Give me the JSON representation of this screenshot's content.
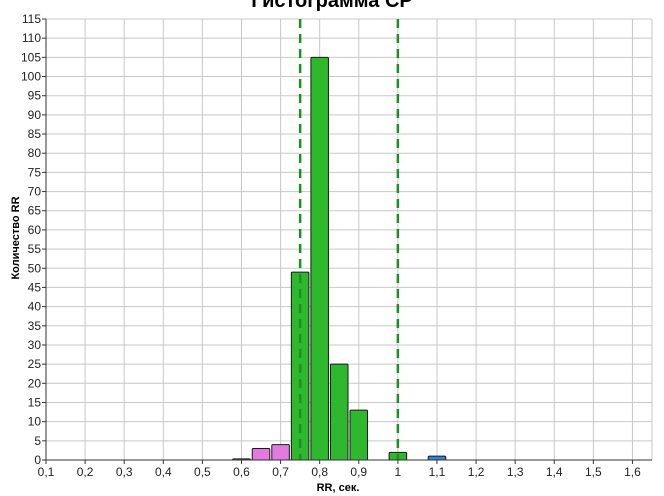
{
  "chart_data": {
    "type": "bar",
    "title": "Гистограмма СР",
    "xlabel": "RR, сек.",
    "ylabel": "Количество RR",
    "xlim": [
      0.1,
      1.65
    ],
    "ylim": [
      0,
      115
    ],
    "x_ticks": [
      "0,1",
      "0,2",
      "0,3",
      "0,4",
      "0,5",
      "0,6",
      "0,7",
      "0,8",
      "0,9",
      "1",
      "1,1",
      "1,2",
      "1,3",
      "1,4",
      "1,5",
      "1,6"
    ],
    "y_ticks": [
      "0",
      "5",
      "10",
      "15",
      "20",
      "25",
      "30",
      "35",
      "40",
      "45",
      "50",
      "55",
      "60",
      "65",
      "70",
      "75",
      "80",
      "85",
      "90",
      "95",
      "100",
      "105",
      "110",
      "115"
    ],
    "grid": true,
    "bin_width": 0.05,
    "bars": [
      {
        "x": 0.575,
        "value": 0.3,
        "color": "#e47ae0"
      },
      {
        "x": 0.625,
        "value": 3,
        "color": "#e47ae0"
      },
      {
        "x": 0.675,
        "value": 4,
        "color": "#e47ae0"
      },
      {
        "x": 0.725,
        "value": 49,
        "color": "#2eb82e"
      },
      {
        "x": 0.775,
        "value": 105,
        "color": "#2eb82e"
      },
      {
        "x": 0.825,
        "value": 25,
        "color": "#2eb82e"
      },
      {
        "x": 0.875,
        "value": 13,
        "color": "#2eb82e"
      },
      {
        "x": 0.975,
        "value": 2,
        "color": "#2eb82e"
      },
      {
        "x": 1.075,
        "value": 1,
        "color": "#2f86d8"
      }
    ],
    "reference_lines": [
      {
        "x": 0.75,
        "color": "#1f8f1f",
        "style": "dashed"
      },
      {
        "x": 1.0,
        "color": "#1f8f1f",
        "style": "dashed"
      }
    ]
  }
}
